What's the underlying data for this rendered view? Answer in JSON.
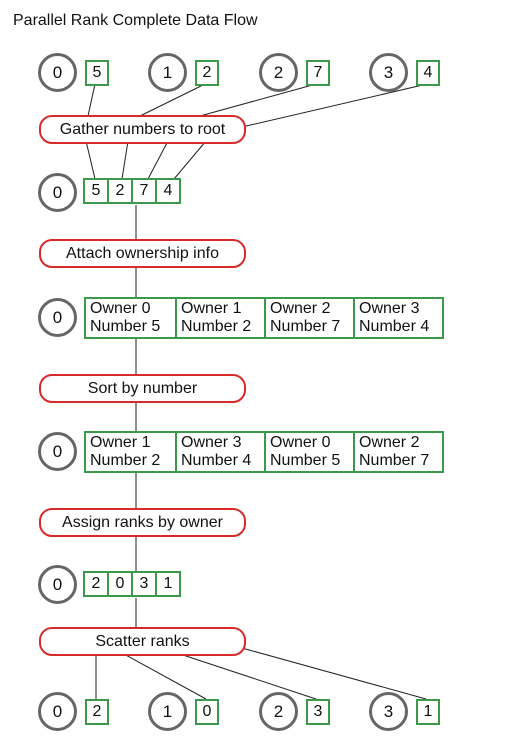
{
  "title": "Parallel Rank Complete Data Flow",
  "procs": [
    {
      "rank": "0",
      "value": "5"
    },
    {
      "rank": "1",
      "value": "2"
    },
    {
      "rank": "2",
      "value": "7"
    },
    {
      "rank": "3",
      "value": "4"
    }
  ],
  "steps": {
    "gather": "Gather numbers to root",
    "attach": "Attach ownership info",
    "sort": "Sort by number",
    "assign": "Assign ranks by owner",
    "scatter": "Scatter ranks"
  },
  "root_rank": "0",
  "gathered": [
    "5",
    "2",
    "7",
    "4"
  ],
  "owned": [
    {
      "owner": "Owner 0",
      "number": "Number 5"
    },
    {
      "owner": "Owner 1",
      "number": "Number 2"
    },
    {
      "owner": "Owner 2",
      "number": "Number 7"
    },
    {
      "owner": "Owner 3",
      "number": "Number 4"
    }
  ],
  "sorted": [
    {
      "owner": "Owner 1",
      "number": "Number 2"
    },
    {
      "owner": "Owner 3",
      "number": "Number 4"
    },
    {
      "owner": "Owner 0",
      "number": "Number 5"
    },
    {
      "owner": "Owner 2",
      "number": "Number 7"
    }
  ],
  "ranks": [
    "2",
    "0",
    "3",
    "1"
  ],
  "final": [
    {
      "rank": "0",
      "value": "2"
    },
    {
      "rank": "1",
      "value": "0"
    },
    {
      "rank": "2",
      "value": "3"
    },
    {
      "rank": "3",
      "value": "1"
    }
  ],
  "colors": {
    "process": "#666666",
    "data": "#3a9a4a",
    "step": "#d82a2a"
  }
}
